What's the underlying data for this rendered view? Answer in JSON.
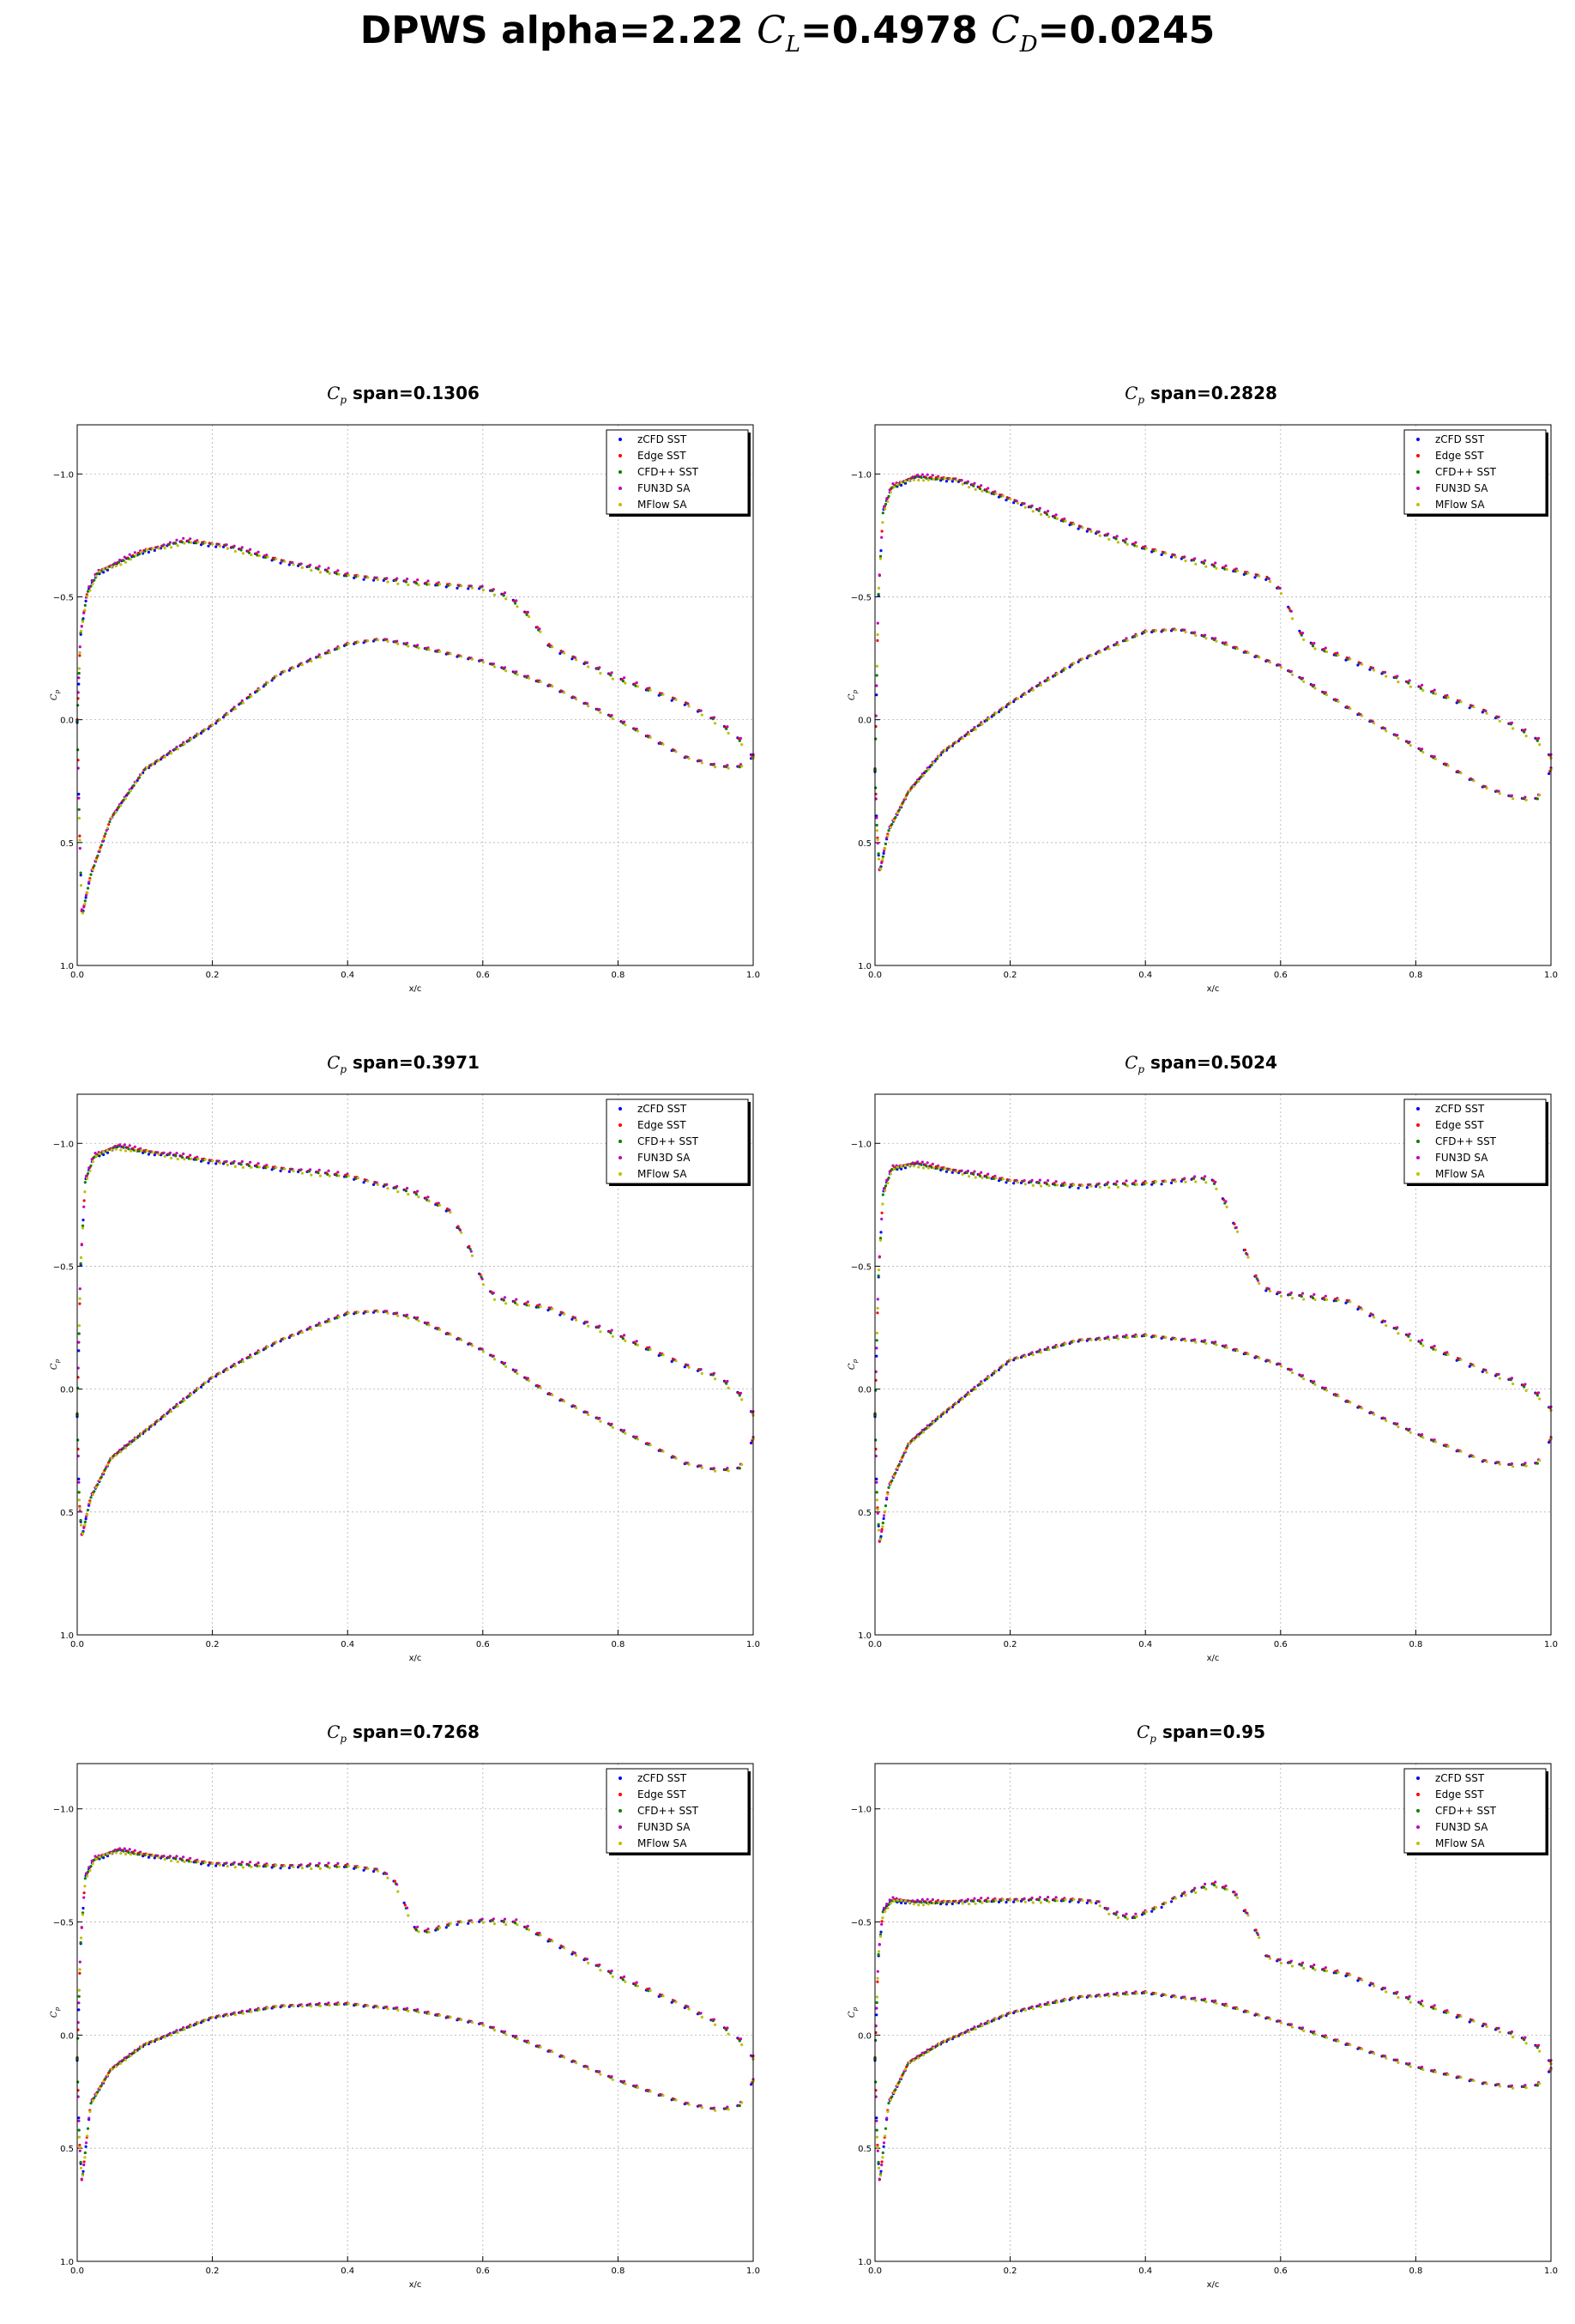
{
  "figure": {
    "title_prefix": "DPWS alpha=2.22",
    "cl_symbol": "C",
    "cl_sub": "L",
    "cl_value": "=0.4978",
    "cd_symbol": "C",
    "cd_sub": "D",
    "cd_value": "=0.0245"
  },
  "chart_data": [
    {
      "type": "scatter",
      "title_symbol": "C",
      "title_sub": "p",
      "title_text": "span=0.1306",
      "xlabel": "x/c",
      "ylabel": "C_p",
      "xlim": [
        0,
        1
      ],
      "ylim": [
        1.0,
        -1.2
      ],
      "y_inverted": true,
      "grid": true,
      "legend": "top-right",
      "upper": [
        [
          0,
          0.0
        ],
        [
          0.005,
          -0.35
        ],
        [
          0.015,
          -0.52
        ],
        [
          0.03,
          -0.6
        ],
        [
          0.06,
          -0.64
        ],
        [
          0.1,
          -0.69
        ],
        [
          0.16,
          -0.73
        ],
        [
          0.22,
          -0.71
        ],
        [
          0.3,
          -0.65
        ],
        [
          0.4,
          -0.59
        ],
        [
          0.5,
          -0.56
        ],
        [
          0.6,
          -0.54
        ],
        [
          0.64,
          -0.5
        ],
        [
          0.67,
          -0.42
        ],
        [
          0.7,
          -0.3
        ],
        [
          0.8,
          -0.17
        ],
        [
          0.9,
          -0.07
        ],
        [
          0.95,
          0.01
        ],
        [
          0.98,
          0.08
        ],
        [
          1.0,
          0.15
        ]
      ],
      "lower": [
        [
          0,
          0.0
        ],
        [
          0.003,
          0.4
        ],
        [
          0.007,
          0.8
        ],
        [
          0.02,
          0.63
        ],
        [
          0.05,
          0.4
        ],
        [
          0.1,
          0.2
        ],
        [
          0.2,
          0.02
        ],
        [
          0.3,
          -0.19
        ],
        [
          0.4,
          -0.31
        ],
        [
          0.45,
          -0.33
        ],
        [
          0.5,
          -0.3
        ],
        [
          0.6,
          -0.24
        ],
        [
          0.7,
          -0.14
        ],
        [
          0.8,
          0.0
        ],
        [
          0.9,
          0.15
        ],
        [
          0.95,
          0.19
        ],
        [
          0.98,
          0.19
        ],
        [
          1.0,
          0.15
        ]
      ]
    },
    {
      "type": "scatter",
      "title_symbol": "C",
      "title_sub": "p",
      "title_text": "span=0.2828",
      "xlabel": "x/c",
      "ylabel": "C_p",
      "xlim": [
        0,
        1
      ],
      "ylim": [
        1.0,
        -1.2
      ],
      "y_inverted": true,
      "grid": true,
      "legend": "top-right",
      "upper": [
        [
          0,
          0.2
        ],
        [
          0.005,
          -0.5
        ],
        [
          0.012,
          -0.85
        ],
        [
          0.025,
          -0.95
        ],
        [
          0.06,
          -0.99
        ],
        [
          0.12,
          -0.98
        ],
        [
          0.2,
          -0.9
        ],
        [
          0.3,
          -0.79
        ],
        [
          0.4,
          -0.7
        ],
        [
          0.5,
          -0.63
        ],
        [
          0.58,
          -0.58
        ],
        [
          0.6,
          -0.53
        ],
        [
          0.62,
          -0.41
        ],
        [
          0.63,
          -0.35
        ],
        [
          0.65,
          -0.3
        ],
        [
          0.7,
          -0.25
        ],
        [
          0.8,
          -0.14
        ],
        [
          0.9,
          -0.04
        ],
        [
          0.95,
          0.03
        ],
        [
          0.98,
          0.08
        ],
        [
          1.0,
          0.15
        ]
      ],
      "lower": [
        [
          0,
          0.2
        ],
        [
          0.003,
          0.45
        ],
        [
          0.007,
          0.62
        ],
        [
          0.02,
          0.45
        ],
        [
          0.05,
          0.29
        ],
        [
          0.1,
          0.13
        ],
        [
          0.2,
          -0.07
        ],
        [
          0.3,
          -0.24
        ],
        [
          0.4,
          -0.36
        ],
        [
          0.45,
          -0.37
        ],
        [
          0.5,
          -0.33
        ],
        [
          0.6,
          -0.22
        ],
        [
          0.7,
          -0.05
        ],
        [
          0.8,
          0.11
        ],
        [
          0.9,
          0.27
        ],
        [
          0.95,
          0.32
        ],
        [
          0.98,
          0.32
        ],
        [
          1.0,
          0.2
        ]
      ]
    },
    {
      "type": "scatter",
      "title_symbol": "C",
      "title_sub": "p",
      "title_text": "span=0.3971",
      "xlabel": "x/c",
      "ylabel": "C_p",
      "xlim": [
        0,
        1
      ],
      "ylim": [
        1.0,
        -1.2
      ],
      "y_inverted": true,
      "grid": true,
      "legend": "top-right",
      "upper": [
        [
          0,
          0.1
        ],
        [
          0.005,
          -0.5
        ],
        [
          0.012,
          -0.85
        ],
        [
          0.025,
          -0.95
        ],
        [
          0.06,
          -0.99
        ],
        [
          0.1,
          -0.97
        ],
        [
          0.2,
          -0.93
        ],
        [
          0.3,
          -0.9
        ],
        [
          0.4,
          -0.87
        ],
        [
          0.5,
          -0.8
        ],
        [
          0.55,
          -0.73
        ],
        [
          0.58,
          -0.58
        ],
        [
          0.6,
          -0.44
        ],
        [
          0.62,
          -0.37
        ],
        [
          0.7,
          -0.33
        ],
        [
          0.8,
          -0.22
        ],
        [
          0.9,
          -0.1
        ],
        [
          0.95,
          -0.05
        ],
        [
          0.98,
          0.02
        ],
        [
          1.0,
          0.1
        ]
      ],
      "lower": [
        [
          0,
          0.1
        ],
        [
          0.003,
          0.45
        ],
        [
          0.007,
          0.6
        ],
        [
          0.02,
          0.44
        ],
        [
          0.05,
          0.28
        ],
        [
          0.1,
          0.17
        ],
        [
          0.2,
          -0.05
        ],
        [
          0.3,
          -0.2
        ],
        [
          0.4,
          -0.31
        ],
        [
          0.45,
          -0.32
        ],
        [
          0.5,
          -0.29
        ],
        [
          0.6,
          -0.16
        ],
        [
          0.7,
          0.02
        ],
        [
          0.8,
          0.16
        ],
        [
          0.9,
          0.3
        ],
        [
          0.95,
          0.33
        ],
        [
          0.98,
          0.32
        ],
        [
          1.0,
          0.2
        ]
      ]
    },
    {
      "type": "scatter",
      "title_symbol": "C",
      "title_sub": "p",
      "title_text": "span=0.5024",
      "xlabel": "x/c",
      "ylabel": "C_p",
      "xlim": [
        0,
        1
      ],
      "ylim": [
        1.0,
        -1.2
      ],
      "y_inverted": true,
      "grid": true,
      "legend": "top-right",
      "upper": [
        [
          0,
          0.1
        ],
        [
          0.005,
          -0.45
        ],
        [
          0.012,
          -0.8
        ],
        [
          0.025,
          -0.9
        ],
        [
          0.06,
          -0.92
        ],
        [
          0.1,
          -0.9
        ],
        [
          0.2,
          -0.85
        ],
        [
          0.3,
          -0.83
        ],
        [
          0.4,
          -0.84
        ],
        [
          0.48,
          -0.86
        ],
        [
          0.5,
          -0.85
        ],
        [
          0.52,
          -0.75
        ],
        [
          0.55,
          -0.55
        ],
        [
          0.57,
          -0.42
        ],
        [
          0.6,
          -0.39
        ],
        [
          0.7,
          -0.36
        ],
        [
          0.8,
          -0.2
        ],
        [
          0.9,
          -0.08
        ],
        [
          0.95,
          -0.03
        ],
        [
          0.98,
          0.02
        ],
        [
          1.0,
          0.08
        ]
      ],
      "lower": [
        [
          0,
          0.1
        ],
        [
          0.003,
          0.45
        ],
        [
          0.007,
          0.63
        ],
        [
          0.02,
          0.4
        ],
        [
          0.05,
          0.22
        ],
        [
          0.1,
          0.1
        ],
        [
          0.2,
          -0.12
        ],
        [
          0.3,
          -0.2
        ],
        [
          0.4,
          -0.22
        ],
        [
          0.5,
          -0.19
        ],
        [
          0.6,
          -0.1
        ],
        [
          0.7,
          0.05
        ],
        [
          0.8,
          0.18
        ],
        [
          0.9,
          0.29
        ],
        [
          0.95,
          0.31
        ],
        [
          0.98,
          0.3
        ],
        [
          1.0,
          0.2
        ]
      ]
    },
    {
      "type": "scatter",
      "title_symbol": "C",
      "title_sub": "p",
      "title_text": "span=0.7268",
      "xlabel": "x/c",
      "ylabel": "C_p",
      "xlim": [
        0,
        1
      ],
      "ylim": [
        1.0,
        -1.2
      ],
      "y_inverted": true,
      "grid": true,
      "legend": "top-right",
      "upper": [
        [
          0,
          0.1
        ],
        [
          0.005,
          -0.4
        ],
        [
          0.012,
          -0.7
        ],
        [
          0.025,
          -0.78
        ],
        [
          0.06,
          -0.82
        ],
        [
          0.1,
          -0.8
        ],
        [
          0.2,
          -0.76
        ],
        [
          0.3,
          -0.75
        ],
        [
          0.4,
          -0.75
        ],
        [
          0.45,
          -0.73
        ],
        [
          0.47,
          -0.68
        ],
        [
          0.5,
          -0.47
        ],
        [
          0.52,
          -0.46
        ],
        [
          0.56,
          -0.5
        ],
        [
          0.6,
          -0.51
        ],
        [
          0.65,
          -0.5
        ],
        [
          0.7,
          -0.42
        ],
        [
          0.8,
          -0.26
        ],
        [
          0.9,
          -0.13
        ],
        [
          0.95,
          -0.05
        ],
        [
          0.98,
          0.02
        ],
        [
          1.0,
          0.1
        ]
      ],
      "lower": [
        [
          0,
          0.1
        ],
        [
          0.003,
          0.45
        ],
        [
          0.007,
          0.65
        ],
        [
          0.02,
          0.3
        ],
        [
          0.05,
          0.15
        ],
        [
          0.1,
          0.04
        ],
        [
          0.2,
          -0.08
        ],
        [
          0.3,
          -0.13
        ],
        [
          0.4,
          -0.14
        ],
        [
          0.5,
          -0.11
        ],
        [
          0.6,
          -0.05
        ],
        [
          0.7,
          0.07
        ],
        [
          0.8,
          0.2
        ],
        [
          0.9,
          0.3
        ],
        [
          0.95,
          0.33
        ],
        [
          0.98,
          0.31
        ],
        [
          1.0,
          0.2
        ]
      ]
    },
    {
      "type": "scatter",
      "title_symbol": "C",
      "title_sub": "p",
      "title_text": "span=0.95",
      "xlabel": "x/c",
      "ylabel": "C_p",
      "xlim": [
        0,
        1
      ],
      "ylim": [
        1.0,
        -1.2
      ],
      "y_inverted": true,
      "grid": true,
      "legend": "top-right",
      "upper": [
        [
          0,
          0.1
        ],
        [
          0.005,
          -0.35
        ],
        [
          0.012,
          -0.55
        ],
        [
          0.025,
          -0.6
        ],
        [
          0.06,
          -0.59
        ],
        [
          0.1,
          -0.59
        ],
        [
          0.2,
          -0.6
        ],
        [
          0.3,
          -0.6
        ],
        [
          0.33,
          -0.59
        ],
        [
          0.35,
          -0.54
        ],
        [
          0.38,
          -0.52
        ],
        [
          0.42,
          -0.57
        ],
        [
          0.45,
          -0.62
        ],
        [
          0.5,
          -0.67
        ],
        [
          0.53,
          -0.64
        ],
        [
          0.56,
          -0.49
        ],
        [
          0.58,
          -0.35
        ],
        [
          0.6,
          -0.33
        ],
        [
          0.7,
          -0.27
        ],
        [
          0.8,
          -0.15
        ],
        [
          0.9,
          -0.05
        ],
        [
          0.95,
          0.0
        ],
        [
          0.98,
          0.05
        ],
        [
          1.0,
          0.12
        ]
      ],
      "lower": [
        [
          0,
          0.1
        ],
        [
          0.003,
          0.45
        ],
        [
          0.007,
          0.65
        ],
        [
          0.02,
          0.3
        ],
        [
          0.05,
          0.12
        ],
        [
          0.1,
          0.03
        ],
        [
          0.2,
          -0.1
        ],
        [
          0.3,
          -0.17
        ],
        [
          0.4,
          -0.19
        ],
        [
          0.5,
          -0.15
        ],
        [
          0.6,
          -0.06
        ],
        [
          0.7,
          0.04
        ],
        [
          0.8,
          0.14
        ],
        [
          0.9,
          0.21
        ],
        [
          0.95,
          0.23
        ],
        [
          0.98,
          0.22
        ],
        [
          1.0,
          0.15
        ]
      ]
    }
  ],
  "legend": {
    "series": [
      {
        "name": "zCFD SST",
        "color": "#0000ff",
        "offset": 0.012
      },
      {
        "name": "Edge SST",
        "color": "#ff0000",
        "offset": 0.0
      },
      {
        "name": "CFD++ SST",
        "color": "#008000",
        "offset": 0.006
      },
      {
        "name": "FUN3D SA",
        "color": "#bf00bf",
        "offset": -0.01
      },
      {
        "name": "MFlow SA",
        "color": "#bfbf00",
        "offset": 0.015
      }
    ]
  },
  "axes": {
    "xticks": [
      0.0,
      0.2,
      0.4,
      0.6,
      0.8,
      1.0
    ],
    "xtick_labels": [
      "0.0",
      "0.2",
      "0.4",
      "0.6",
      "0.8",
      "1.0"
    ],
    "yticks": [
      -1.0,
      -0.5,
      0.0,
      0.5,
      1.0
    ],
    "ytick_labels": [
      "−1.0",
      "−0.5",
      "0.0",
      "0.5",
      "1.0"
    ],
    "ylabel_symbol": "C",
    "ylabel_sub": "p",
    "grid_color": "#b0b0b0"
  }
}
